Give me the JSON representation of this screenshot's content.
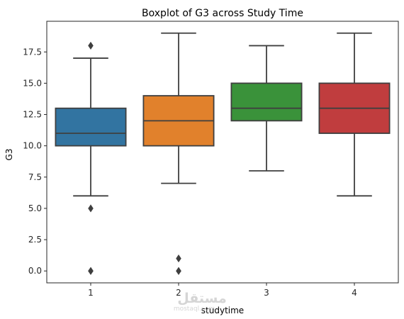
{
  "chart_data": {
    "type": "boxplot",
    "title": "Boxplot of G3 across Study Time",
    "xlabel": "studytime",
    "ylabel": "G3",
    "categories": [
      "1",
      "2",
      "3",
      "4"
    ],
    "colors": [
      "#3274a1",
      "#e1812c",
      "#3a923a",
      "#c03d3e"
    ],
    "ylim": [
      -0.95,
      19.95
    ],
    "yticks": [
      0.0,
      2.5,
      5.0,
      7.5,
      10.0,
      12.5,
      15.0,
      17.5
    ],
    "ytick_labels": [
      "0.0",
      "2.5",
      "5.0",
      "7.5",
      "10.0",
      "12.5",
      "15.0",
      "17.5"
    ],
    "grid": false,
    "legend": "none",
    "boxes": [
      {
        "category": "1",
        "whisker_low": 6,
        "q1": 10,
        "median": 11,
        "q3": 13,
        "whisker_high": 17,
        "outliers": [
          18,
          5,
          0,
          0
        ]
      },
      {
        "category": "2",
        "whisker_low": 7,
        "q1": 10,
        "median": 12,
        "q3": 14,
        "whisker_high": 19,
        "outliers": [
          1,
          0,
          0
        ]
      },
      {
        "category": "3",
        "whisker_low": 8,
        "q1": 12,
        "median": 13,
        "q3": 15,
        "whisker_high": 18,
        "outliers": []
      },
      {
        "category": "4",
        "whisker_low": 6,
        "q1": 11,
        "median": 13,
        "q3": 15,
        "whisker_high": 19,
        "outliers": []
      }
    ]
  },
  "watermark": {
    "arabic": "مستقل",
    "latin": "mostaql.com"
  }
}
